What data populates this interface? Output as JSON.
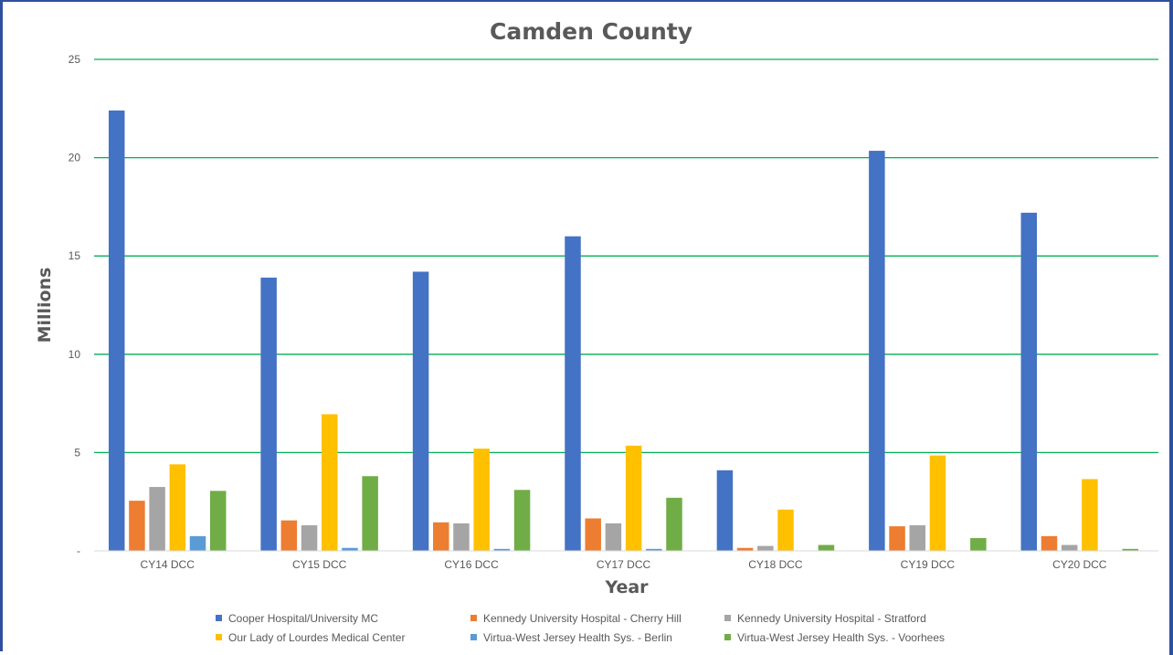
{
  "chart_data": {
    "type": "bar",
    "title": "Camden County",
    "xlabel": "Year",
    "ylabel": "Millions",
    "ylim": [
      0,
      25
    ],
    "yticks": [
      0,
      5,
      10,
      15,
      20,
      25
    ],
    "ytick_labels": [
      "-",
      "5",
      "10",
      "15",
      "20",
      "25"
    ],
    "grid": true,
    "legend_position": "bottom",
    "categories": [
      "CY14 DCC",
      "CY15 DCC",
      "CY16 DCC",
      "CY17 DCC",
      "CY18 DCC",
      "CY19 DCC",
      "CY20 DCC"
    ],
    "series": [
      {
        "name": "Cooper Hospital/University MC",
        "color": "#4472c4",
        "values": [
          22.4,
          13.9,
          14.2,
          16.0,
          4.1,
          20.35,
          17.2
        ]
      },
      {
        "name": "Kennedy University Hospital - Cherry Hill",
        "color": "#ed7d31",
        "values": [
          2.55,
          1.55,
          1.45,
          1.65,
          0.15,
          1.25,
          0.75
        ]
      },
      {
        "name": "Kennedy University Hospital - Stratford",
        "color": "#a5a5a5",
        "values": [
          3.25,
          1.3,
          1.4,
          1.4,
          0.25,
          1.3,
          0.3
        ]
      },
      {
        "name": "Our Lady of Lourdes Medical Center",
        "color": "#ffc000",
        "values": [
          4.4,
          6.95,
          5.2,
          5.35,
          2.1,
          4.85,
          3.65
        ]
      },
      {
        "name": "Virtua-West Jersey Health Sys. - Berlin",
        "color": "#5b9bd5",
        "values": [
          0.75,
          0.15,
          0.1,
          0.1,
          0,
          0,
          0
        ]
      },
      {
        "name": "Virtua-West Jersey Health Sys. - Voorhees",
        "color": "#70ad47",
        "values": [
          3.05,
          3.8,
          3.1,
          2.7,
          0.3,
          0.65,
          0.1
        ]
      }
    ]
  }
}
